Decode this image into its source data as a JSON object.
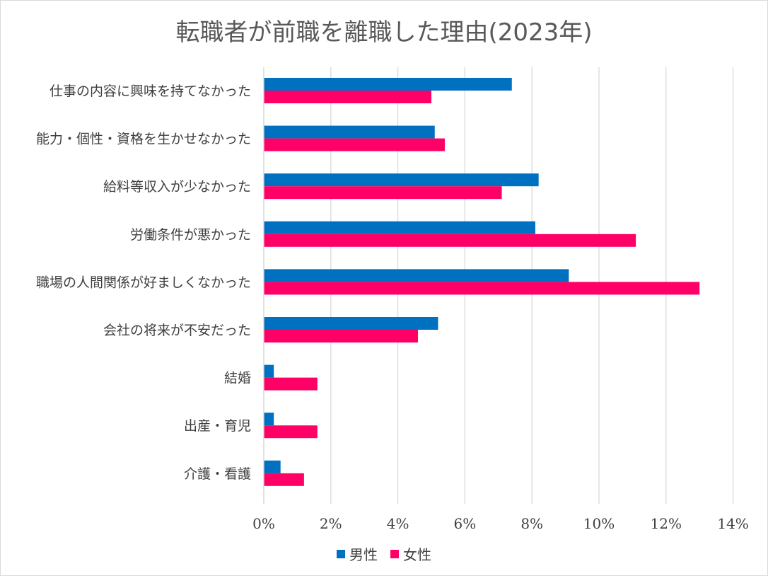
{
  "chart_data": {
    "type": "bar",
    "orientation": "horizontal",
    "title": "転職者が前職を離職した理由(2023年)",
    "categories": [
      "仕事の内容に興味を持てなかった",
      "能力・個性・資格を生かせなかった",
      "給料等収入が少なかった",
      "労働条件が悪かった",
      "職場の人間関係が好ましくなかった",
      "会社の将来が不安だった",
      "結婚",
      "出産・育児",
      "介護・看護"
    ],
    "series": [
      {
        "name": "男性",
        "color": "#0070C0",
        "values": [
          7.4,
          5.1,
          8.2,
          8.1,
          9.1,
          5.2,
          0.3,
          0.3,
          0.5
        ]
      },
      {
        "name": "女性",
        "color": "#FF0066",
        "values": [
          5.0,
          5.4,
          7.1,
          11.1,
          13.0,
          4.6,
          1.6,
          1.6,
          1.2
        ]
      }
    ],
    "xlim": [
      0,
      14
    ],
    "xticks": [
      "0%",
      "2%",
      "4%",
      "6%",
      "8%",
      "10%",
      "12%",
      "14%"
    ],
    "grid": true,
    "legend": "bottom"
  }
}
